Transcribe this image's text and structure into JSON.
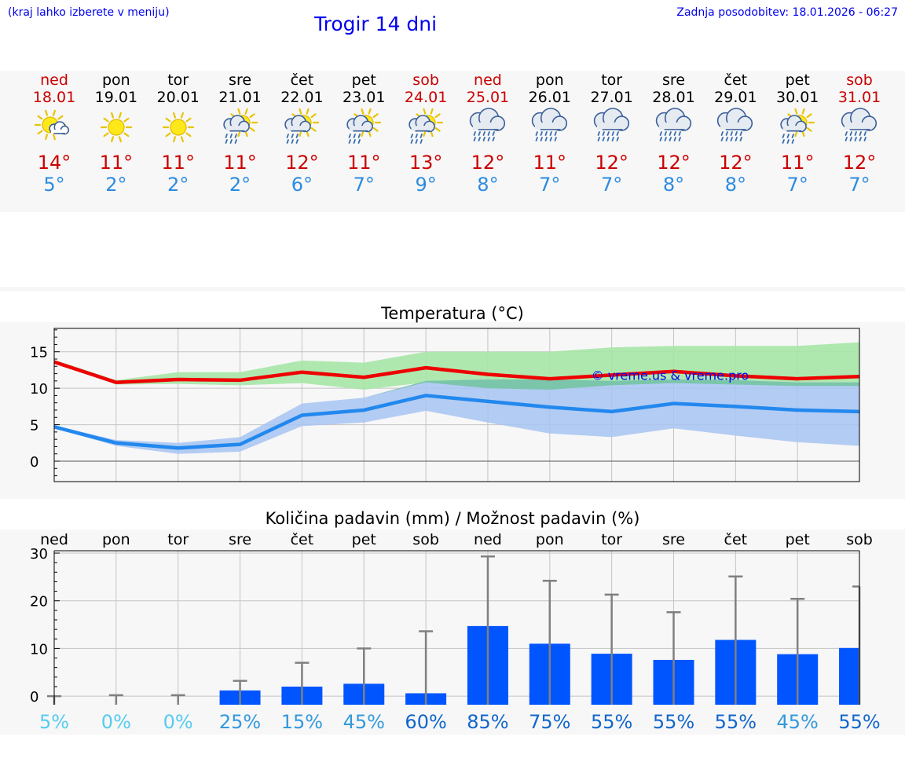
{
  "header": {
    "hint": "(kraj lahko izberete v meniju)",
    "title": "Trogir 14 dni",
    "updated": "Zadnja posodobitev: 18.01.2026 - 06:27"
  },
  "colors": {
    "max": "#ee0000",
    "min": "#2288ee",
    "max_band": "#a6e6a6",
    "min_band": "#a7c4f2",
    "bar": "#0055ff",
    "whisker": "#808080",
    "watermark": "#0000ee"
  },
  "days": [
    {
      "name": "ned",
      "date": "18.01",
      "icon": "sun-cloud-icon",
      "max": "14°",
      "min": "5°",
      "weekend": true
    },
    {
      "name": "pon",
      "date": "19.01",
      "icon": "sun-icon",
      "max": "11°",
      "min": "2°",
      "weekend": false
    },
    {
      "name": "tor",
      "date": "20.01",
      "icon": "sun-icon",
      "max": "11°",
      "min": "2°",
      "weekend": false
    },
    {
      "name": "sre",
      "date": "21.01",
      "icon": "sun-rain-icon",
      "max": "11°",
      "min": "2°",
      "weekend": false
    },
    {
      "name": "čet",
      "date": "22.01",
      "icon": "sun-rain-icon",
      "max": "12°",
      "min": "6°",
      "weekend": false
    },
    {
      "name": "pet",
      "date": "23.01",
      "icon": "sun-rain-icon",
      "max": "11°",
      "min": "7°",
      "weekend": false
    },
    {
      "name": "sob",
      "date": "24.01",
      "icon": "sun-rain-icon",
      "max": "13°",
      "min": "9°",
      "weekend": true
    },
    {
      "name": "ned",
      "date": "25.01",
      "icon": "rain-cloud-icon",
      "max": "12°",
      "min": "8°",
      "weekend": true
    },
    {
      "name": "pon",
      "date": "26.01",
      "icon": "rain-cloud-icon",
      "max": "11°",
      "min": "7°",
      "weekend": false
    },
    {
      "name": "tor",
      "date": "27.01",
      "icon": "rain-cloud-icon",
      "max": "12°",
      "min": "7°",
      "weekend": false
    },
    {
      "name": "sre",
      "date": "28.01",
      "icon": "rain-cloud-icon",
      "max": "12°",
      "min": "8°",
      "weekend": false
    },
    {
      "name": "čet",
      "date": "29.01",
      "icon": "rain-cloud-icon",
      "max": "12°",
      "min": "8°",
      "weekend": false
    },
    {
      "name": "pet",
      "date": "30.01",
      "icon": "sun-rain-icon",
      "max": "11°",
      "min": "7°",
      "weekend": false
    },
    {
      "name": "sob",
      "date": "31.01",
      "icon": "rain-cloud-icon",
      "max": "12°",
      "min": "7°",
      "weekend": true
    }
  ],
  "chart_data": [
    {
      "type": "line",
      "title": "Temperatura (°C)",
      "ylim": [
        -2.8,
        18.2
      ],
      "yticks": [
        0,
        5,
        10,
        15
      ],
      "grid": true,
      "watermark": "© vreme.us & vreme.pro",
      "x": [
        0,
        1,
        2,
        3,
        4,
        5,
        6,
        7,
        8,
        9,
        10,
        11,
        12,
        13
      ],
      "series": [
        {
          "name": "max",
          "values": [
            13.6,
            10.8,
            11.2,
            11.1,
            12.2,
            11.5,
            12.8,
            11.9,
            11.3,
            11.8,
            12.3,
            11.7,
            11.3,
            11.6
          ]
        },
        {
          "name": "min",
          "values": [
            4.7,
            2.5,
            1.8,
            2.3,
            6.3,
            7.0,
            9.0,
            8.2,
            7.4,
            6.8,
            7.9,
            7.5,
            7.0,
            6.8
          ]
        }
      ],
      "bands": [
        {
          "name": "max_range",
          "low": [
            13.6,
            10.5,
            10.6,
            10.4,
            10.7,
            9.8,
            10.8,
            10.0,
            9.8,
            10.4,
            10.7,
            10.5,
            10.3,
            10.3
          ],
          "high": [
            13.9,
            11.1,
            12.2,
            12.2,
            13.8,
            13.5,
            15.0,
            15.0,
            15.0,
            15.6,
            15.8,
            15.8,
            15.8,
            16.3
          ]
        },
        {
          "name": "min_range",
          "low": [
            4.5,
            2.1,
            1.0,
            1.3,
            4.8,
            5.3,
            6.9,
            5.3,
            3.8,
            3.3,
            4.5,
            3.5,
            2.6,
            2.1
          ],
          "high": [
            4.9,
            2.9,
            2.5,
            3.3,
            7.9,
            8.7,
            11.0,
            11.2,
            11.2,
            11.0,
            11.2,
            11.1,
            10.8,
            10.8
          ]
        }
      ]
    },
    {
      "type": "bar",
      "title": "Količina padavin (mm) / Možnost padavin (%)",
      "ylim": [
        -1.8,
        30.5
      ],
      "yticks": [
        0,
        10,
        20,
        30
      ],
      "grid": true,
      "categories": [
        "ned",
        "pon",
        "tor",
        "sre",
        "čet",
        "pet",
        "sob",
        "ned",
        "pon",
        "tor",
        "sre",
        "čet",
        "pet",
        "sob"
      ],
      "values": [
        0,
        0,
        0,
        1.2,
        2.0,
        2.6,
        0.6,
        14.7,
        11.0,
        8.9,
        7.6,
        11.8,
        8.8,
        10.1
      ],
      "max": [
        0,
        0.2,
        0.2,
        3.2,
        7.0,
        10.0,
        13.6,
        29.3,
        24.2,
        21.3,
        17.6,
        25.1,
        20.4,
        23.0
      ],
      "probability": [
        "5%",
        "0%",
        "0%",
        "25%",
        "15%",
        "45%",
        "60%",
        "85%",
        "75%",
        "55%",
        "55%",
        "55%",
        "45%",
        "55%"
      ],
      "probability_colors": [
        "#55ccee",
        "#55ccee",
        "#55ccee",
        "#3399dd",
        "#3399dd",
        "#3399dd",
        "#1166cc",
        "#1166cc",
        "#1166cc",
        "#1166cc",
        "#1166cc",
        "#1166cc",
        "#3399dd",
        "#1166cc"
      ]
    }
  ]
}
